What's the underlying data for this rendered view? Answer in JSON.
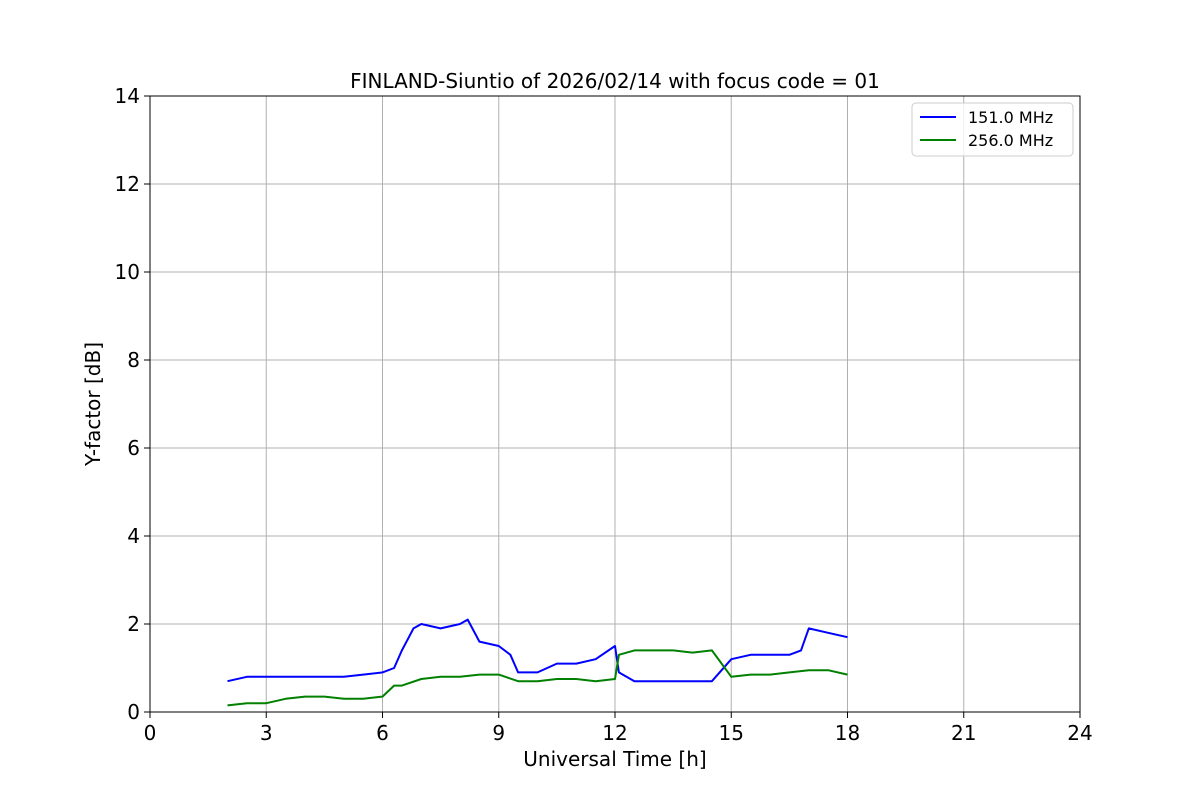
{
  "chart_data": {
    "type": "line",
    "title": "FINLAND-Siuntio of 2026/02/14 with focus code = 01",
    "xlabel": "Universal Time [h]",
    "ylabel": "Y-factor [dB]",
    "xlim": [
      0,
      24
    ],
    "ylim": [
      0,
      14
    ],
    "xticks": [
      0,
      3,
      6,
      9,
      12,
      15,
      18,
      21,
      24
    ],
    "yticks": [
      0,
      2,
      4,
      6,
      8,
      10,
      12,
      14
    ],
    "grid": true,
    "legend_position": "top-right",
    "series": [
      {
        "name": " 151.0 MHz",
        "color": "#0000ff",
        "x": [
          2.0,
          2.5,
          3.0,
          3.5,
          4.0,
          4.5,
          5.0,
          5.5,
          6.0,
          6.3,
          6.5,
          6.8,
          7.0,
          7.5,
          8.0,
          8.2,
          8.5,
          9.0,
          9.3,
          9.5,
          10.0,
          10.5,
          11.0,
          11.5,
          12.0,
          12.1,
          12.5,
          13.0,
          13.5,
          14.0,
          14.5,
          15.0,
          15.5,
          16.0,
          16.5,
          16.8,
          17.0,
          17.5,
          18.0
        ],
        "y": [
          0.7,
          0.8,
          0.8,
          0.8,
          0.8,
          0.8,
          0.8,
          0.85,
          0.9,
          1.0,
          1.4,
          1.9,
          2.0,
          1.9,
          2.0,
          2.1,
          1.6,
          1.5,
          1.3,
          0.9,
          0.9,
          1.1,
          1.1,
          1.2,
          1.5,
          0.9,
          0.7,
          0.7,
          0.7,
          0.7,
          0.7,
          1.2,
          1.3,
          1.3,
          1.3,
          1.4,
          1.9,
          1.8,
          1.7
        ]
      },
      {
        "name": "256.0 MHz",
        "color": "#008000",
        "x": [
          2.0,
          2.5,
          3.0,
          3.5,
          4.0,
          4.5,
          5.0,
          5.5,
          6.0,
          6.3,
          6.5,
          7.0,
          7.5,
          8.0,
          8.5,
          9.0,
          9.5,
          10.0,
          10.5,
          11.0,
          11.5,
          12.0,
          12.1,
          12.5,
          13.0,
          13.5,
          14.0,
          14.5,
          15.0,
          15.5,
          16.0,
          16.5,
          17.0,
          17.5,
          18.0
        ],
        "y": [
          0.15,
          0.2,
          0.2,
          0.3,
          0.35,
          0.35,
          0.3,
          0.3,
          0.35,
          0.6,
          0.6,
          0.75,
          0.8,
          0.8,
          0.85,
          0.85,
          0.7,
          0.7,
          0.75,
          0.75,
          0.7,
          0.75,
          1.3,
          1.4,
          1.4,
          1.4,
          1.35,
          1.4,
          0.8,
          0.85,
          0.85,
          0.9,
          0.95,
          0.95,
          0.85
        ]
      }
    ]
  }
}
